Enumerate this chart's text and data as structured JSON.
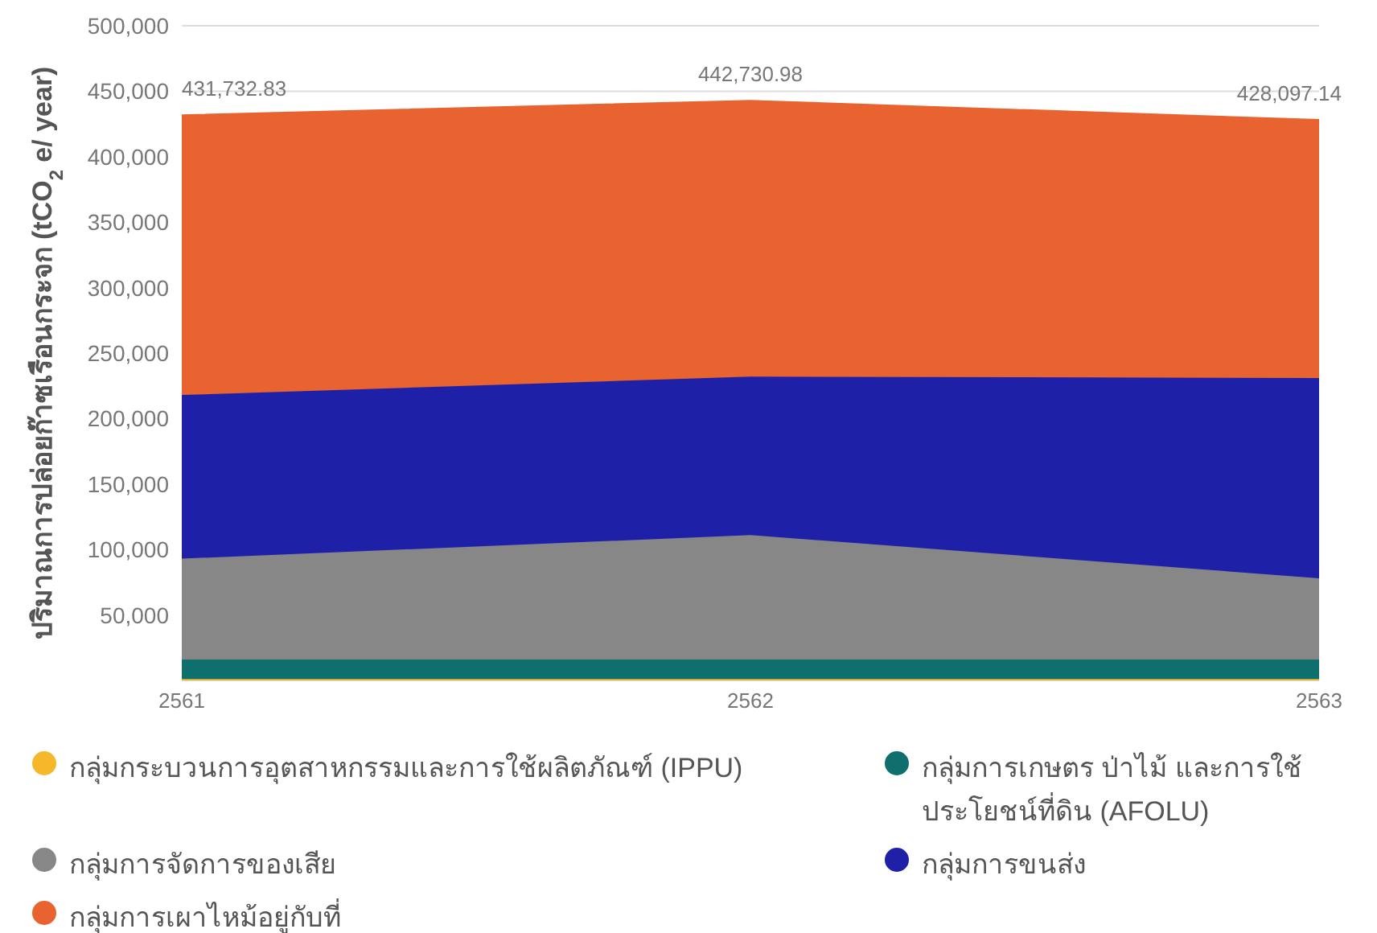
{
  "chart_data": {
    "type": "area",
    "stacked": true,
    "ylabel": "ปริมาณการปล่อยก๊าซเรือนกระจก (tCO$_{2}$ e/ year)",
    "categories": [
      "2561",
      "2562",
      "2563"
    ],
    "series": [
      {
        "name": "กลุ่มกระบวนการอุตสาหกรรมและการใช้ผลิตภัณฑ์ (IPPU)",
        "color": "#f5b82a",
        "values": [
          1000,
          1000,
          1000
        ]
      },
      {
        "name": "กลุ่มการเกษตร ป่าไม้ และการใช้ประโยชน์ที่ดิน (AFOLU)",
        "color": "#0f6f6c",
        "values": [
          15000,
          15000,
          15000
        ]
      },
      {
        "name": "กลุ่มการจัดการของเสีย",
        "color": "#878787",
        "values": [
          77000,
          95000,
          62000
        ]
      },
      {
        "name": "กลุ่มการขนส่ง",
        "color": "#1f20a8",
        "values": [
          125000,
          121000,
          153000
        ]
      },
      {
        "name": "กลุ่มการเผาไหม้อยู่กับที่",
        "color": "#e8632f",
        "values": [
          213732.83,
          210730.98,
          197097.14
        ]
      }
    ],
    "totals": [
      "431,732.83",
      "442,730.98",
      "428,097.14"
    ],
    "ylim": [
      0,
      500000
    ],
    "yticks": [
      {
        "value": 50000,
        "label": "50,000"
      },
      {
        "value": 100000,
        "label": "100,000"
      },
      {
        "value": 150000,
        "label": "150,000"
      },
      {
        "value": 200000,
        "label": "200,000"
      },
      {
        "value": 250000,
        "label": "250,000"
      },
      {
        "value": 300000,
        "label": "300,000"
      },
      {
        "value": 350000,
        "label": "350,000"
      },
      {
        "value": 400000,
        "label": "400,000"
      },
      {
        "value": 450000,
        "label": "450,000"
      },
      {
        "value": 500000,
        "label": "500,000"
      }
    ],
    "grid": "y",
    "legend": "bottom"
  }
}
